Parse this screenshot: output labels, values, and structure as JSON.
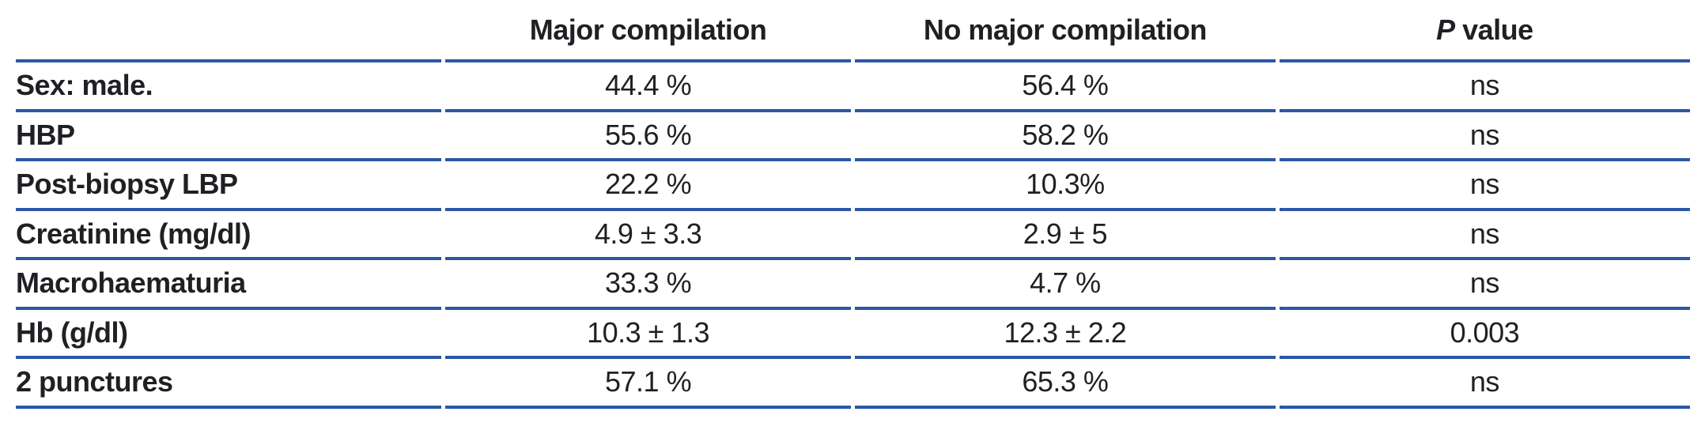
{
  "table": {
    "header": {
      "label_col": "",
      "major_col": "Major compilation",
      "no_major_col": "No major compilation",
      "p_col_symbol": "P",
      "p_col_rest": " value"
    },
    "rows": [
      {
        "label": "Sex: male.",
        "major": "44.4 %",
        "no_major": "56.4 %",
        "p": "ns"
      },
      {
        "label": "HBP",
        "major": "55.6 %",
        "no_major": "58.2 %",
        "p": "ns"
      },
      {
        "label": "Post-biopsy LBP",
        "major": "22.2 %",
        "no_major": "10.3%",
        "p": "ns"
      },
      {
        "label": "Creatinine (mg/dl)",
        "major": "4.9 ± 3.3",
        "no_major": "2.9 ± 5",
        "p": "ns"
      },
      {
        "label": "Macrohaematuria",
        "major": "33.3 %",
        "no_major": "4.7 %",
        "p": "ns"
      },
      {
        "label": "Hb (g/dl)",
        "major": "10.3 ± 1.3",
        "no_major": "12.3 ± 2.2",
        "p": "0.003"
      },
      {
        "label": "2 punctures",
        "major": "57.1 %",
        "no_major": "65.3 %",
        "p": "ns"
      }
    ],
    "colors": {
      "rule_blue": "#2b57a5",
      "text": "#1f2023",
      "background": "#ffffff"
    }
  }
}
